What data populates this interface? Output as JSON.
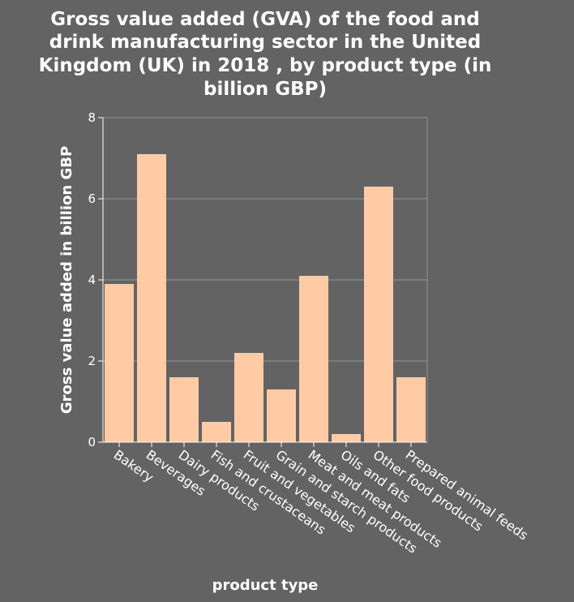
{
  "chart_data": {
    "type": "bar",
    "title_lines": [
      "Gross value added (GVA) of the food and",
      "drink manufacturing sector in the United",
      "Kingdom (UK) in 2018 , by product type (in",
      "billion GBP)"
    ],
    "xlabel": "product type",
    "ylabel": "Gross value added in billion GBP",
    "categories": [
      "Bakery",
      "Beverages",
      "Dairy products",
      "Fish and crustaceans",
      "Fruit and vegetables",
      "Grain and starch products",
      "Meat and meat products",
      "Oils and fats",
      "Other food products",
      "Prepared animal feeds"
    ],
    "values": [
      3.9,
      7.1,
      1.6,
      0.5,
      2.2,
      1.3,
      4.1,
      0.2,
      6.3,
      1.6
    ],
    "ylim": [
      0,
      8
    ],
    "yticks": [
      "0",
      "2",
      "4",
      "6",
      "8"
    ],
    "grid": true,
    "colors": {
      "background": "#636363",
      "bar": "#ffcba4",
      "grid": "#8a8a8a",
      "text": "#ffffff"
    }
  }
}
